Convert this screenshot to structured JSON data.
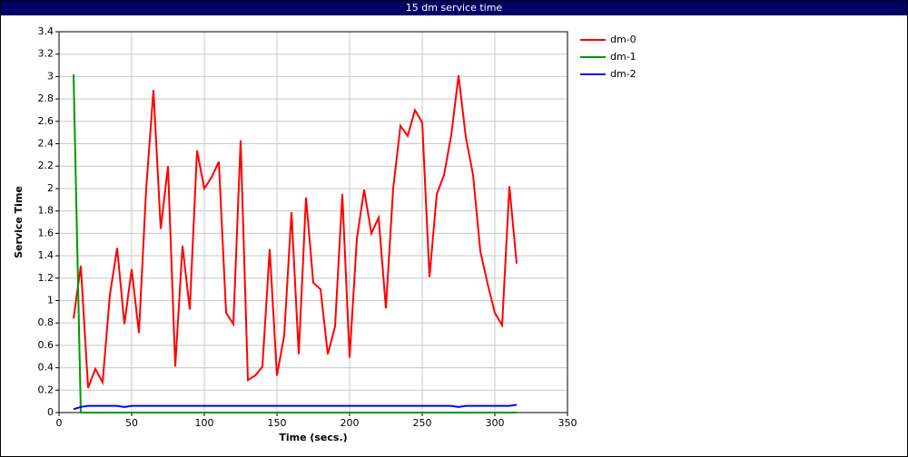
{
  "chart_data": {
    "type": "line",
    "title": "15 dm service time",
    "x_label": "Time (secs.)",
    "y_label": "Service Time",
    "x": [
      10,
      15,
      20,
      25,
      30,
      35,
      40,
      45,
      50,
      55,
      60,
      65,
      70,
      75,
      80,
      85,
      90,
      95,
      100,
      105,
      110,
      115,
      120,
      125,
      130,
      135,
      140,
      145,
      150,
      155,
      160,
      165,
      170,
      175,
      180,
      185,
      190,
      195,
      200,
      205,
      210,
      215,
      220,
      225,
      230,
      235,
      240,
      245,
      250,
      255,
      260,
      265,
      270,
      275,
      280,
      285,
      290,
      295,
      300,
      305,
      310,
      315
    ],
    "series": [
      {
        "name": "dm-0",
        "color": "#ff0000",
        "values": [
          0.84,
          1.31,
          0.22,
          0.39,
          0.27,
          1.05,
          1.47,
          0.79,
          1.28,
          0.71,
          2.0,
          2.88,
          1.64,
          2.2,
          0.41,
          1.49,
          0.92,
          2.34,
          2.0,
          2.1,
          2.24,
          0.89,
          0.79,
          2.43,
          0.29,
          0.33,
          0.41,
          1.46,
          0.33,
          0.69,
          1.79,
          0.52,
          1.92,
          1.16,
          1.1,
          0.52,
          0.77,
          1.95,
          0.49,
          1.55,
          1.99,
          1.6,
          1.74,
          0.93,
          2.0,
          2.56,
          2.47,
          2.7,
          2.59,
          1.21,
          1.95,
          2.12,
          2.48,
          3.01,
          2.46,
          2.12,
          1.44,
          1.15,
          0.89,
          0.78,
          2.02,
          1.33
        ]
      },
      {
        "name": "dm-1",
        "color": "#009900",
        "values": [
          3.02,
          0,
          0,
          0,
          0,
          0,
          0,
          0,
          0,
          0,
          0,
          0,
          0,
          0,
          0,
          0,
          0,
          0,
          0,
          0,
          0,
          0,
          0,
          0,
          0,
          0,
          0,
          0,
          0,
          0,
          0,
          0,
          0,
          0,
          0,
          0,
          0,
          0,
          0,
          0,
          0,
          0,
          0,
          0,
          0,
          0,
          0,
          0,
          0,
          0,
          0,
          0,
          0,
          0,
          0,
          0,
          0,
          0,
          0,
          0,
          0,
          0
        ]
      },
      {
        "name": "dm-2",
        "color": "#0000ff",
        "values": [
          0.03,
          0.05,
          0.06,
          0.06,
          0.06,
          0.06,
          0.06,
          0.05,
          0.06,
          0.06,
          0.06,
          0.06,
          0.06,
          0.06,
          0.06,
          0.06,
          0.06,
          0.06,
          0.06,
          0.06,
          0.06,
          0.06,
          0.06,
          0.06,
          0.06,
          0.06,
          0.06,
          0.06,
          0.06,
          0.06,
          0.06,
          0.06,
          0.06,
          0.06,
          0.06,
          0.06,
          0.06,
          0.06,
          0.06,
          0.06,
          0.06,
          0.06,
          0.06,
          0.06,
          0.06,
          0.06,
          0.06,
          0.06,
          0.06,
          0.06,
          0.06,
          0.06,
          0.06,
          0.05,
          0.06,
          0.06,
          0.06,
          0.06,
          0.06,
          0.06,
          0.06,
          0.07
        ]
      }
    ],
    "xlim": [
      0,
      350
    ],
    "ylim": [
      0,
      3.4
    ],
    "xticks": [
      0,
      50,
      100,
      150,
      200,
      250,
      300,
      350
    ],
    "yticks": [
      0,
      0.2,
      0.4,
      0.6,
      0.8,
      1,
      1.2,
      1.4,
      1.6,
      1.8,
      2,
      2.2,
      2.4,
      2.6,
      2.8,
      3,
      3.2,
      3.4
    ],
    "grid": true,
    "legend": "right"
  }
}
